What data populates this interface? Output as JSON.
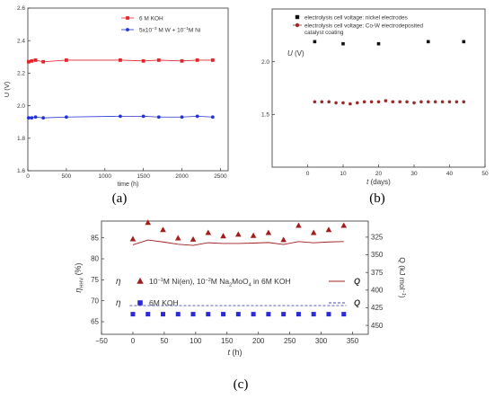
{
  "chart_data": [
    {
      "id": "a",
      "type": "line",
      "panel_label": "(a)",
      "xlabel": "time (h)",
      "ylabel": "U (V)",
      "xlim": [
        0,
        2600
      ],
      "ylim": [
        1.6,
        2.6
      ],
      "xticks": [
        0,
        500,
        1000,
        1500,
        2000,
        2500
      ],
      "yticks": [
        1.6,
        1.8,
        2.0,
        2.2,
        2.4,
        2.6
      ],
      "ytick_labels": [
        "1.6",
        "1.8",
        "2.0",
        "2.2",
        "2.4",
        "2.6"
      ],
      "legend_position": "top-right",
      "series": [
        {
          "name": "6 M KOH",
          "color": "#e0262b",
          "marker": "square",
          "x": [
            10,
            50,
            100,
            200,
            500,
            1200,
            1500,
            1700,
            2000,
            2200,
            2400
          ],
          "y": [
            2.27,
            2.275,
            2.28,
            2.27,
            2.28,
            2.28,
            2.275,
            2.28,
            2.275,
            2.28,
            2.28
          ]
        },
        {
          "name_parts": [
            "5x10",
            "−3",
            " M W + 10",
            "−1",
            "M Ni"
          ],
          "color": "#2233d6",
          "marker": "circle",
          "x": [
            10,
            50,
            100,
            200,
            500,
            1200,
            1500,
            1700,
            2000,
            2200,
            2400
          ],
          "y": [
            1.925,
            1.925,
            1.93,
            1.925,
            1.93,
            1.935,
            1.935,
            1.93,
            1.93,
            1.935,
            1.93
          ]
        }
      ]
    },
    {
      "id": "b",
      "type": "scatter",
      "panel_label": "(b)",
      "xlabel": "t (days)",
      "ylabel": "U (V)",
      "xlim": [
        -10,
        50
      ],
      "ylim": [
        1.0,
        2.5
      ],
      "xticks": [
        0,
        10,
        20,
        30,
        40,
        50
      ],
      "yticks": [
        1.5,
        2.0
      ],
      "ytick_labels": [
        "1.5",
        "2.0"
      ],
      "legend_position": "top-left",
      "series": [
        {
          "name": "electrolysis cell voltage: nickel electrodes",
          "color": "#111111",
          "marker": "square",
          "x": [
            2,
            10,
            20,
            34,
            44
          ],
          "y": [
            2.19,
            2.17,
            2.17,
            2.19,
            2.19
          ]
        },
        {
          "name_lines": [
            "electrolysis cell voltage: Co-W electrodeposited",
            "catalyst coating"
          ],
          "color": "#9b2a2a",
          "marker": "circle",
          "x": [
            2,
            4,
            6,
            8,
            10,
            12,
            14,
            16,
            18,
            20,
            22,
            24,
            26,
            28,
            30,
            32,
            34,
            36,
            38,
            40,
            42,
            44
          ],
          "y": [
            1.62,
            1.62,
            1.62,
            1.61,
            1.61,
            1.6,
            1.61,
            1.62,
            1.62,
            1.62,
            1.63,
            1.62,
            1.62,
            1.62,
            1.61,
            1.62,
            1.62,
            1.62,
            1.62,
            1.62,
            1.62,
            1.62
          ]
        }
      ]
    },
    {
      "id": "c",
      "type": "scatter",
      "panel_label": "(c)",
      "xlabel": "t (h)",
      "ylabel_left": "η",
      "ylabel_left_sub": "HHV",
      "ylabel_left_unit": "(%)",
      "ylabel_right": "Q (kJ mol",
      "ylabel_right_sup": "−1",
      "ylabel_right_end": ")",
      "xlim": [
        -50,
        375
      ],
      "ylim_left": [
        62,
        89
      ],
      "ylim_right": [
        462.6,
        302.2
      ],
      "xticks": [
        -50,
        0,
        50,
        100,
        150,
        200,
        250,
        300,
        350
      ],
      "xtick_labels": [
        "−50",
        "0",
        "50",
        "100",
        "150",
        "200",
        "250",
        "300",
        "350"
      ],
      "yticks_left": [
        65,
        70,
        75,
        80,
        85
      ],
      "yticks_right": [
        325,
        350,
        375,
        400,
        425,
        450
      ],
      "legend": [
        {
          "symbol": "η",
          "text_parts": [
            "10",
            "−1",
            "M Ni(en), 10",
            "−2",
            "M Na",
            "2",
            "MoO",
            "4",
            " in 6M KOH"
          ],
          "line_label": "Q"
        },
        {
          "symbol": "η",
          "text": "6M KOH",
          "line_label": "Q"
        }
      ],
      "series": [
        {
          "name_ref": "legend.0",
          "axis": "left",
          "color": "#a11d1d",
          "marker": "triangle",
          "x": [
            0,
            24,
            48,
            72,
            96,
            120,
            144,
            168,
            192,
            216,
            240,
            264,
            288,
            312,
            336
          ],
          "y": [
            84.7,
            88.6,
            86.9,
            84.9,
            84.6,
            86.2,
            85.4,
            85.8,
            85.5,
            86.2,
            84.5,
            87.9,
            86.2,
            86.9,
            87.9
          ]
        },
        {
          "name_ref": "legend.0",
          "axis": "right",
          "style": "solid-line",
          "color": "#a11d1d",
          "x": [
            0,
            24,
            48,
            72,
            96,
            120,
            144,
            168,
            192,
            216,
            240,
            264,
            288,
            312,
            336
          ],
          "y": [
            335.8,
            329.0,
            331.8,
            335.0,
            336.7,
            332.9,
            334.0,
            334.0,
            333.4,
            332.6,
            335.4,
            331.2,
            333.0,
            331.8,
            331.2
          ]
        },
        {
          "name_ref": "legend.1",
          "axis": "left",
          "color": "#2a2ad8",
          "marker": "square",
          "x": [
            0,
            24,
            48,
            72,
            96,
            120,
            144,
            168,
            192,
            216,
            240,
            264,
            288,
            312,
            336
          ],
          "y": [
            66.8,
            66.8,
            66.8,
            66.8,
            66.8,
            66.8,
            66.8,
            66.8,
            66.8,
            66.8,
            66.8,
            66.8,
            66.8,
            66.8,
            66.8
          ]
        },
        {
          "name_ref": "legend.1",
          "axis": "right",
          "style": "dashed-line",
          "color": "#4a4aa8",
          "x": [
            -5,
            340
          ],
          "y": [
            422.0,
            422.0
          ]
        }
      ]
    }
  ]
}
